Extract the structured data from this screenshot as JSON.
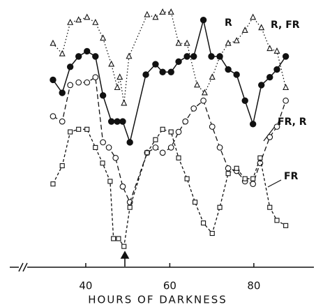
{
  "chart_data": {
    "type": "line",
    "x_label": "HOURS OF DARKNESS",
    "xlim": [
      25.4,
      94.3
    ],
    "xticks": [
      40,
      60,
      80
    ],
    "ylim": [
      0,
      100
    ],
    "grid": false,
    "series": [
      {
        "name": "R, FR",
        "color": "#111111",
        "marker": "triangle-open",
        "line": "dotted",
        "x": [
          32.2,
          34.4,
          36.3,
          38.3,
          40.3,
          42.3,
          44.1,
          46.1,
          47.5,
          48.1,
          49.1,
          50.3,
          54.6,
          56.6,
          58.3,
          60.3,
          62.1,
          64.1,
          66.5,
          68.3,
          70.1,
          71.9,
          73.9,
          75.9,
          77.9,
          79.8,
          81.8,
          83.8,
          85.5,
          87.6
        ],
        "values": [
          86,
          82,
          94,
          95,
          96,
          94,
          88,
          78,
          69,
          73,
          63,
          81,
          97,
          96,
          98,
          98,
          86,
          86,
          70,
          67,
          73,
          81,
          86,
          87,
          91,
          96,
          92,
          84,
          83,
          69
        ]
      },
      {
        "name": "R",
        "color": "#111111",
        "marker": "circle-filled",
        "line": "solid",
        "x": [
          32.2,
          34.4,
          36.3,
          38.3,
          40.3,
          42.3,
          44.1,
          46.1,
          47.5,
          48.8,
          50.5,
          54.3,
          56.6,
          58.3,
          60.3,
          62.1,
          64.1,
          65.7,
          68,
          69.9,
          71.9,
          73.9,
          75.9,
          77.9,
          79.8,
          81.8,
          83.8,
          85.5,
          87.6
        ],
        "values": [
          72,
          67,
          77,
          81,
          83,
          81,
          66,
          56,
          56,
          56,
          48,
          74,
          78,
          75,
          75,
          79,
          81,
          81,
          95,
          81,
          81,
          76,
          74,
          64,
          55,
          70,
          73,
          76,
          81
        ]
      },
      {
        "name": "FR, R",
        "color": "#111111",
        "marker": "circle-open",
        "line": "dashed",
        "x": [
          32.2,
          34.4,
          36.3,
          38.3,
          40.3,
          42.3,
          44.1,
          45.5,
          47.1,
          48.8,
          50.5,
          54.6,
          56.6,
          58.3,
          60.3,
          62.1,
          63.7,
          65.7,
          68,
          70.1,
          71.9,
          73.9,
          75.9,
          77.9,
          79.8,
          81.5,
          83.8,
          85.5,
          87.6
        ],
        "values": [
          58,
          56,
          70,
          71,
          71,
          73,
          48,
          46,
          42,
          31,
          25,
          44,
          46,
          44,
          46,
          52,
          56,
          61,
          64,
          54,
          46,
          38,
          37,
          33,
          32,
          40,
          50,
          54,
          64
        ]
      },
      {
        "name": "FR",
        "color": "#111111",
        "marker": "square-open",
        "line": "short-dashed",
        "x": [
          32.2,
          34.4,
          36.3,
          38.3,
          40.3,
          42.3,
          44,
          45.8,
          46.6,
          47.8,
          49.1,
          50.5,
          54.6,
          56.6,
          58.3,
          60.3,
          62.1,
          64.1,
          66,
          68,
          70.1,
          71.9,
          73.9,
          75.9,
          77.9,
          79.8,
          81.5,
          83.8,
          85.5,
          87.6
        ],
        "values": [
          32,
          39,
          52,
          53,
          53,
          46,
          40,
          33,
          11,
          11,
          8,
          23,
          44,
          49,
          53,
          52,
          42,
          34,
          25,
          17,
          13,
          23,
          36,
          38,
          34,
          34,
          42,
          23,
          18,
          16
        ]
      }
    ]
  }
}
